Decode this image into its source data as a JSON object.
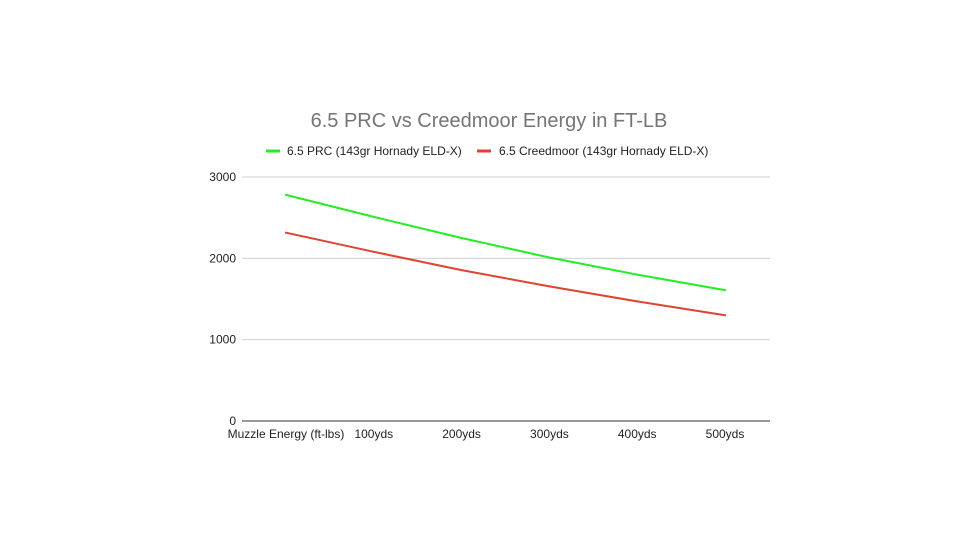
{
  "chart_data": {
    "type": "line",
    "title": "6.5 PRC vs Creedmoor Energy in FT-LB",
    "xlabel": "",
    "ylabel": "",
    "categories": [
      "Muzzle Energy (ft-lbs)",
      "100yds",
      "200yds",
      "300yds",
      "400yds",
      "500yds"
    ],
    "series": [
      {
        "name": "6.5 PRC (143gr Hornady ELD-X)",
        "color": "#22ee22",
        "values": [
          2780,
          2510,
          2250,
          2010,
          1800,
          1610
        ]
      },
      {
        "name": "6.5 Creedmoor (143gr Hornady ELD-X)",
        "color": "#e04333",
        "values": [
          2315,
          2080,
          1855,
          1655,
          1470,
          1300
        ]
      }
    ],
    "ylim": [
      0,
      3000
    ],
    "yticks": [
      0,
      1000,
      2000,
      3000
    ],
    "grid": true,
    "legend_position": "top"
  }
}
